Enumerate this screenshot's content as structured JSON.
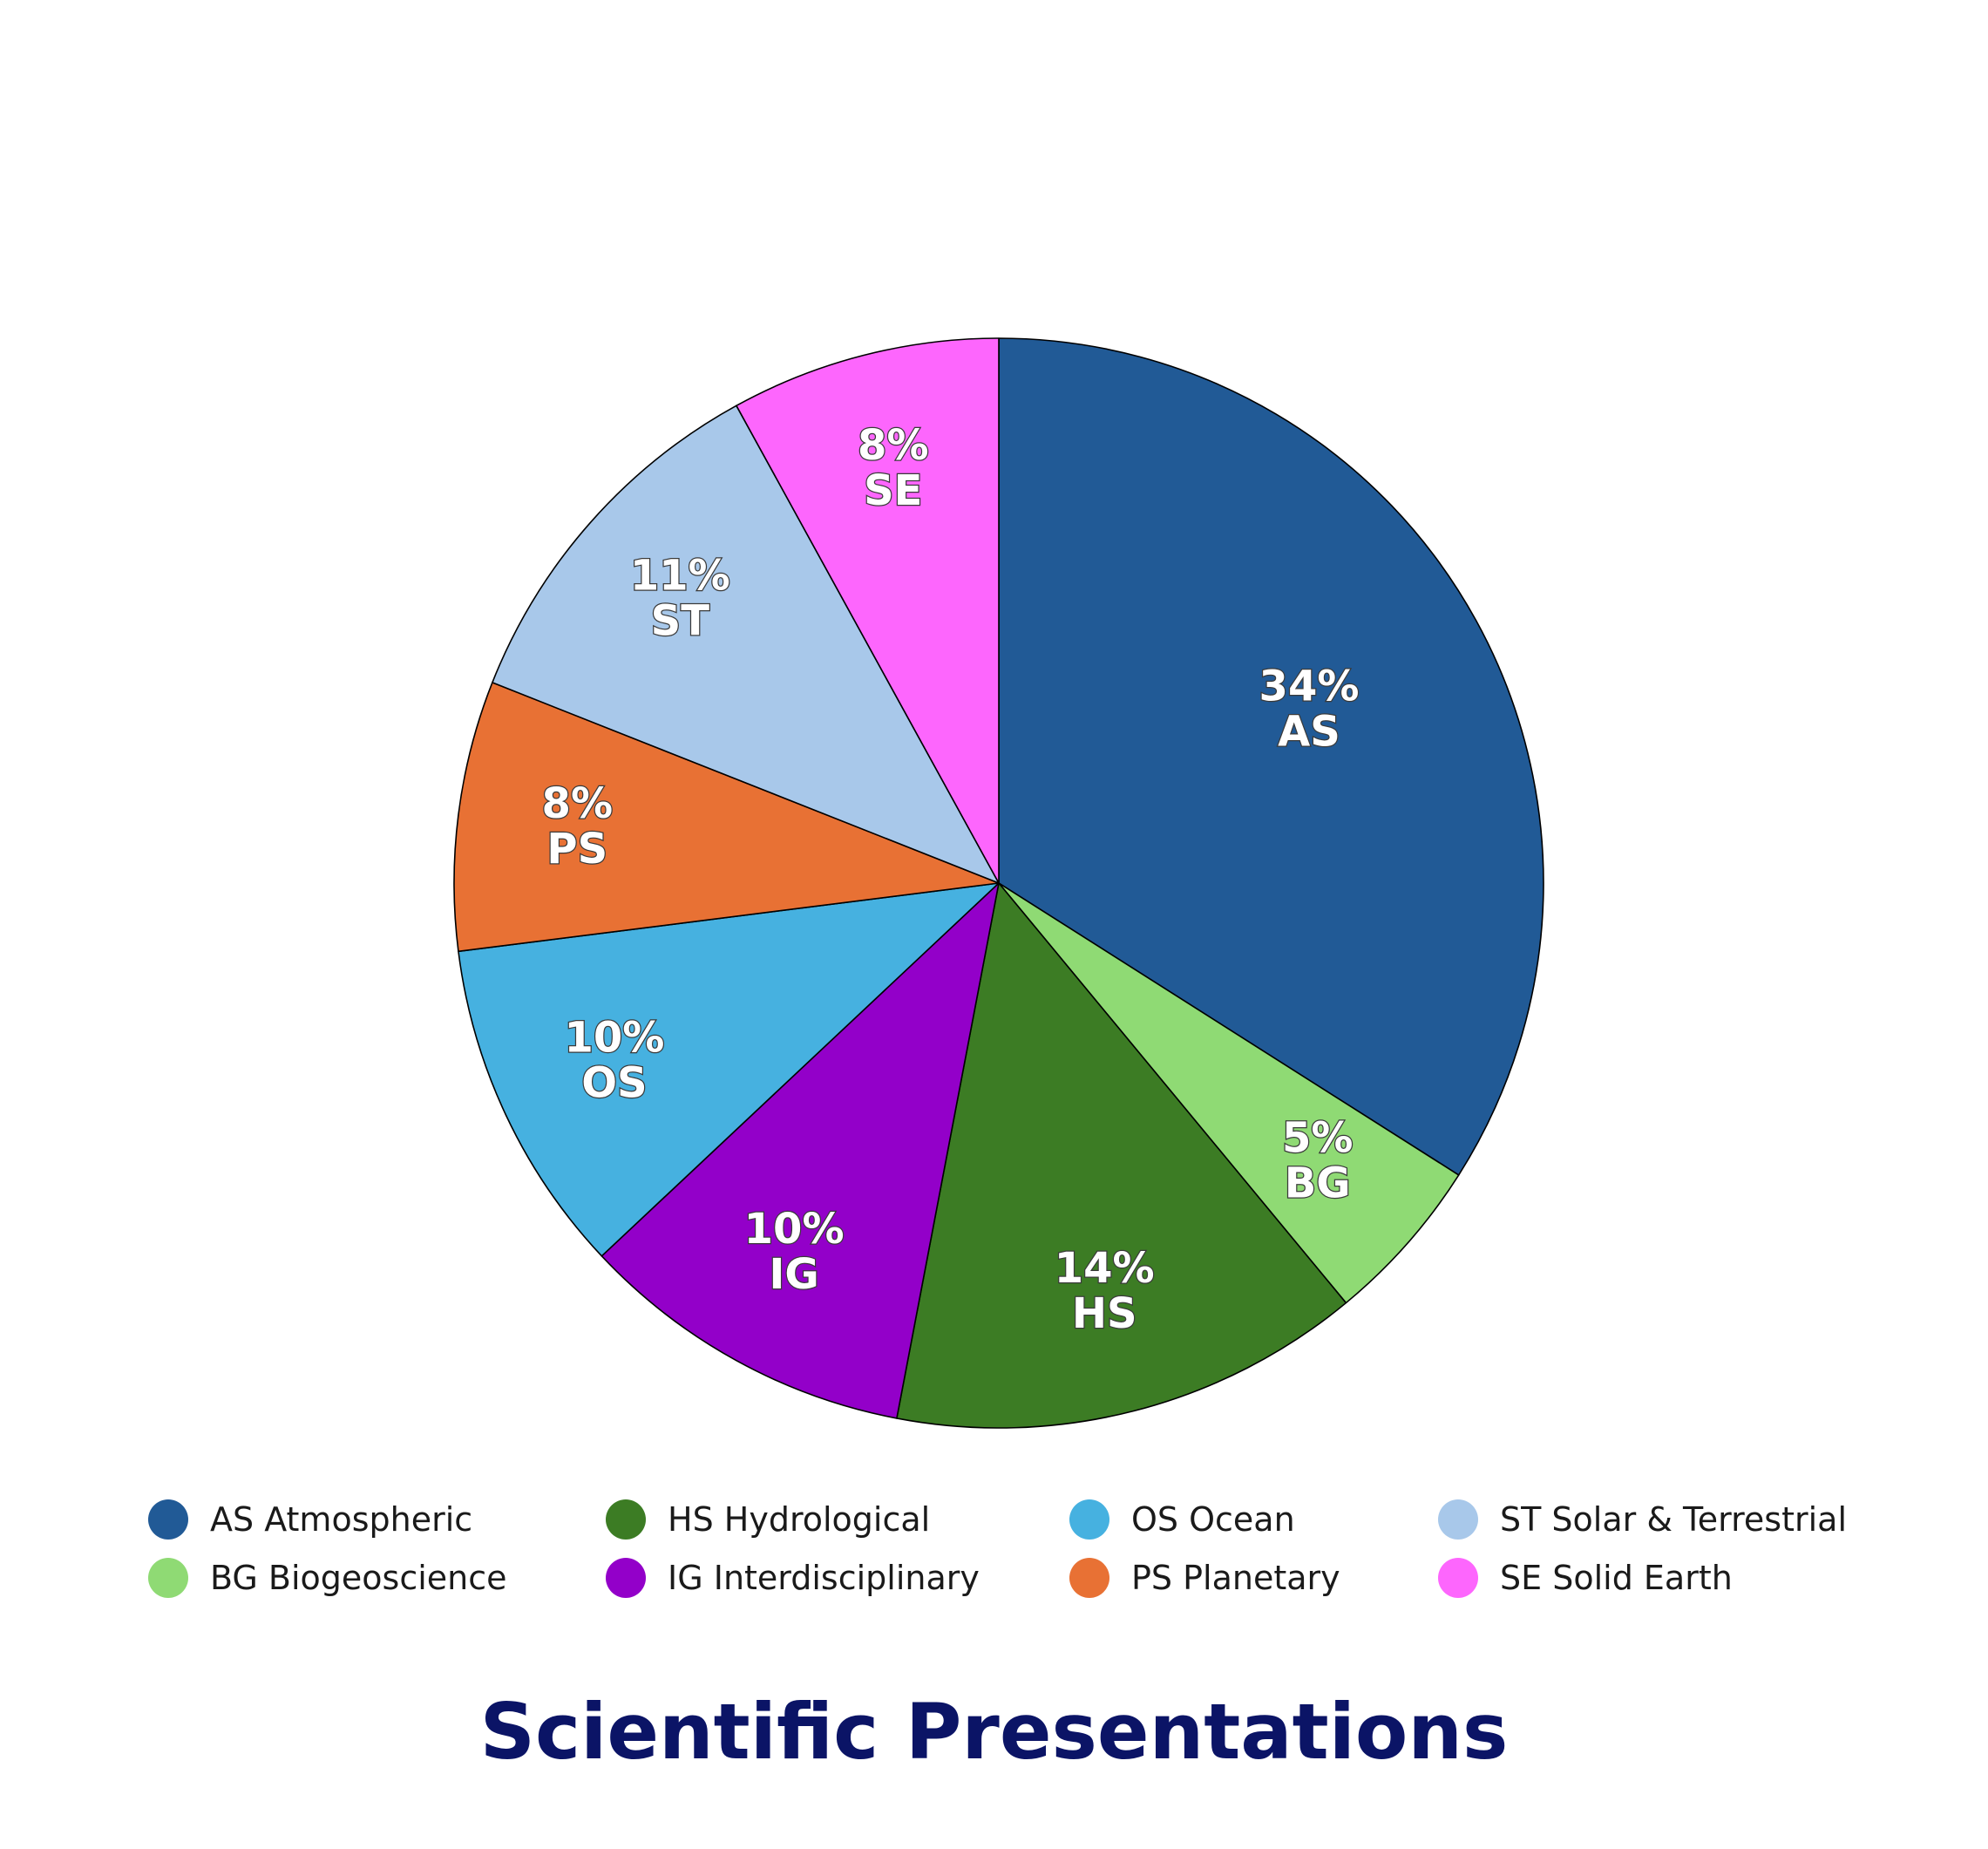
{
  "chart_data": {
    "type": "pie",
    "title": "Scientific Presentations",
    "legend_position": "bottom",
    "slices": [
      {
        "code": "AS",
        "name": "AS Atmospheric",
        "value": 34,
        "label": "34%",
        "color": "#215a96"
      },
      {
        "code": "BG",
        "name": "BG Biogeoscience",
        "value": 5,
        "label": "5%",
        "color": "#8fda74"
      },
      {
        "code": "HS",
        "name": "HS Hydrological",
        "value": 14,
        "label": "14%",
        "color": "#3c7c24"
      },
      {
        "code": "IG",
        "name": "IG Interdisciplinary",
        "value": 10,
        "label": "10%",
        "color": "#9300c9"
      },
      {
        "code": "OS",
        "name": "OS Ocean",
        "value": 10,
        "label": "10%",
        "color": "#46b1e0"
      },
      {
        "code": "PS",
        "name": "PS Planetary",
        "value": 8,
        "label": "8%",
        "color": "#e87134"
      },
      {
        "code": "ST",
        "name": "ST Solar & Terrestrial",
        "value": 11,
        "label": "11%",
        "color": "#a8c8ea"
      },
      {
        "code": "SE",
        "name": "SE Solid Earth",
        "value": 8,
        "label": "8%",
        "color": "#fd66fd"
      }
    ]
  }
}
